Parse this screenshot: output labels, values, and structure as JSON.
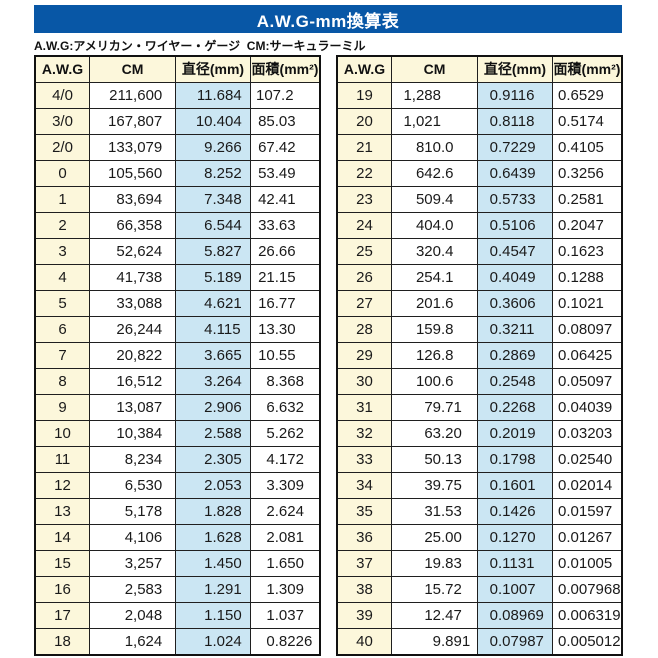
{
  "title": "A.W.G-mm換算表",
  "caption": "A.W.G:アメリカン・ワイヤー・ゲージ  CM:サーキュラーミル",
  "columns": [
    "A.W.G",
    "CM",
    "直径(mm)",
    "面積(mm²)"
  ],
  "colors": {
    "header_blue": "#0857A6",
    "cell_yellow": "#FCF7DB",
    "cell_blue": "#CBE6F3",
    "border": "#1F1F1F",
    "title_text": "#FFFFFF"
  },
  "tables": [
    {
      "rows": [
        [
          "4/0",
          "211,600",
          "11.684",
          "107.2"
        ],
        [
          "3/0",
          "167,807",
          "10.404",
          "85.03"
        ],
        [
          "2/0",
          "133,079",
          "9.266",
          "67.42"
        ],
        [
          "0",
          "105,560",
          "8.252",
          "53.49"
        ],
        [
          "1",
          "83,694",
          "7.348",
          "42.41"
        ],
        [
          "2",
          "66,358",
          "6.544",
          "33.63"
        ],
        [
          "3",
          "52,624",
          "5.827",
          "26.66"
        ],
        [
          "4",
          "41,738",
          "5.189",
          "21.15"
        ],
        [
          "5",
          "33,088",
          "4.621",
          "16.77"
        ],
        [
          "6",
          "26,244",
          "4.115",
          "13.30"
        ],
        [
          "7",
          "20,822",
          "3.665",
          "10.55"
        ],
        [
          "8",
          "16,512",
          "3.264",
          "8.368"
        ],
        [
          "9",
          "13,087",
          "2.906",
          "6.632"
        ],
        [
          "10",
          "10,384",
          "2.588",
          "5.262"
        ],
        [
          "11",
          "8,234",
          "2.305",
          "4.172"
        ],
        [
          "12",
          "6,530",
          "2.053",
          "3.309"
        ],
        [
          "13",
          "5,178",
          "1.828",
          "2.624"
        ],
        [
          "14",
          "4,106",
          "1.628",
          "2.081"
        ],
        [
          "15",
          "3,257",
          "1.450",
          "1.650"
        ],
        [
          "16",
          "2,583",
          "1.291",
          "1.309"
        ],
        [
          "17",
          "2,048",
          "1.150",
          "1.037"
        ],
        [
          "18",
          "1,624",
          "1.024",
          "0.8226"
        ]
      ]
    },
    {
      "rows": [
        [
          "19",
          "1,288",
          "0.9116",
          "0.6529"
        ],
        [
          "20",
          "1,021",
          "0.8118",
          "0.5174"
        ],
        [
          "21",
          "810.0",
          "0.7229",
          "0.4105"
        ],
        [
          "22",
          "642.6",
          "0.6439",
          "0.3256"
        ],
        [
          "23",
          "509.4",
          "0.5733",
          "0.2581"
        ],
        [
          "24",
          "404.0",
          "0.5106",
          "0.2047"
        ],
        [
          "25",
          "320.4",
          "0.4547",
          "0.1623"
        ],
        [
          "26",
          "254.1",
          "0.4049",
          "0.1288"
        ],
        [
          "27",
          "201.6",
          "0.3606",
          "0.1021"
        ],
        [
          "28",
          "159.8",
          "0.3211",
          "0.08097"
        ],
        [
          "29",
          "126.8",
          "0.2869",
          "0.06425"
        ],
        [
          "30",
          "100.6",
          "0.2548",
          "0.05097"
        ],
        [
          "31",
          "79.71",
          "0.2268",
          "0.04039"
        ],
        [
          "32",
          "63.20",
          "0.2019",
          "0.03203"
        ],
        [
          "33",
          "50.13",
          "0.1798",
          "0.02540"
        ],
        [
          "34",
          "39.75",
          "0.1601",
          "0.02014"
        ],
        [
          "35",
          "31.53",
          "0.1426",
          "0.01597"
        ],
        [
          "36",
          "25.00",
          "0.1270",
          "0.01267"
        ],
        [
          "37",
          "19.83",
          "0.1131",
          "0.01005"
        ],
        [
          "38",
          "15.72",
          "0.1007",
          "0.007968"
        ],
        [
          "39",
          "12.47",
          "0.08969",
          "0.006319"
        ],
        [
          "40",
          "9.891",
          "0.07987",
          "0.005012"
        ]
      ]
    }
  ]
}
